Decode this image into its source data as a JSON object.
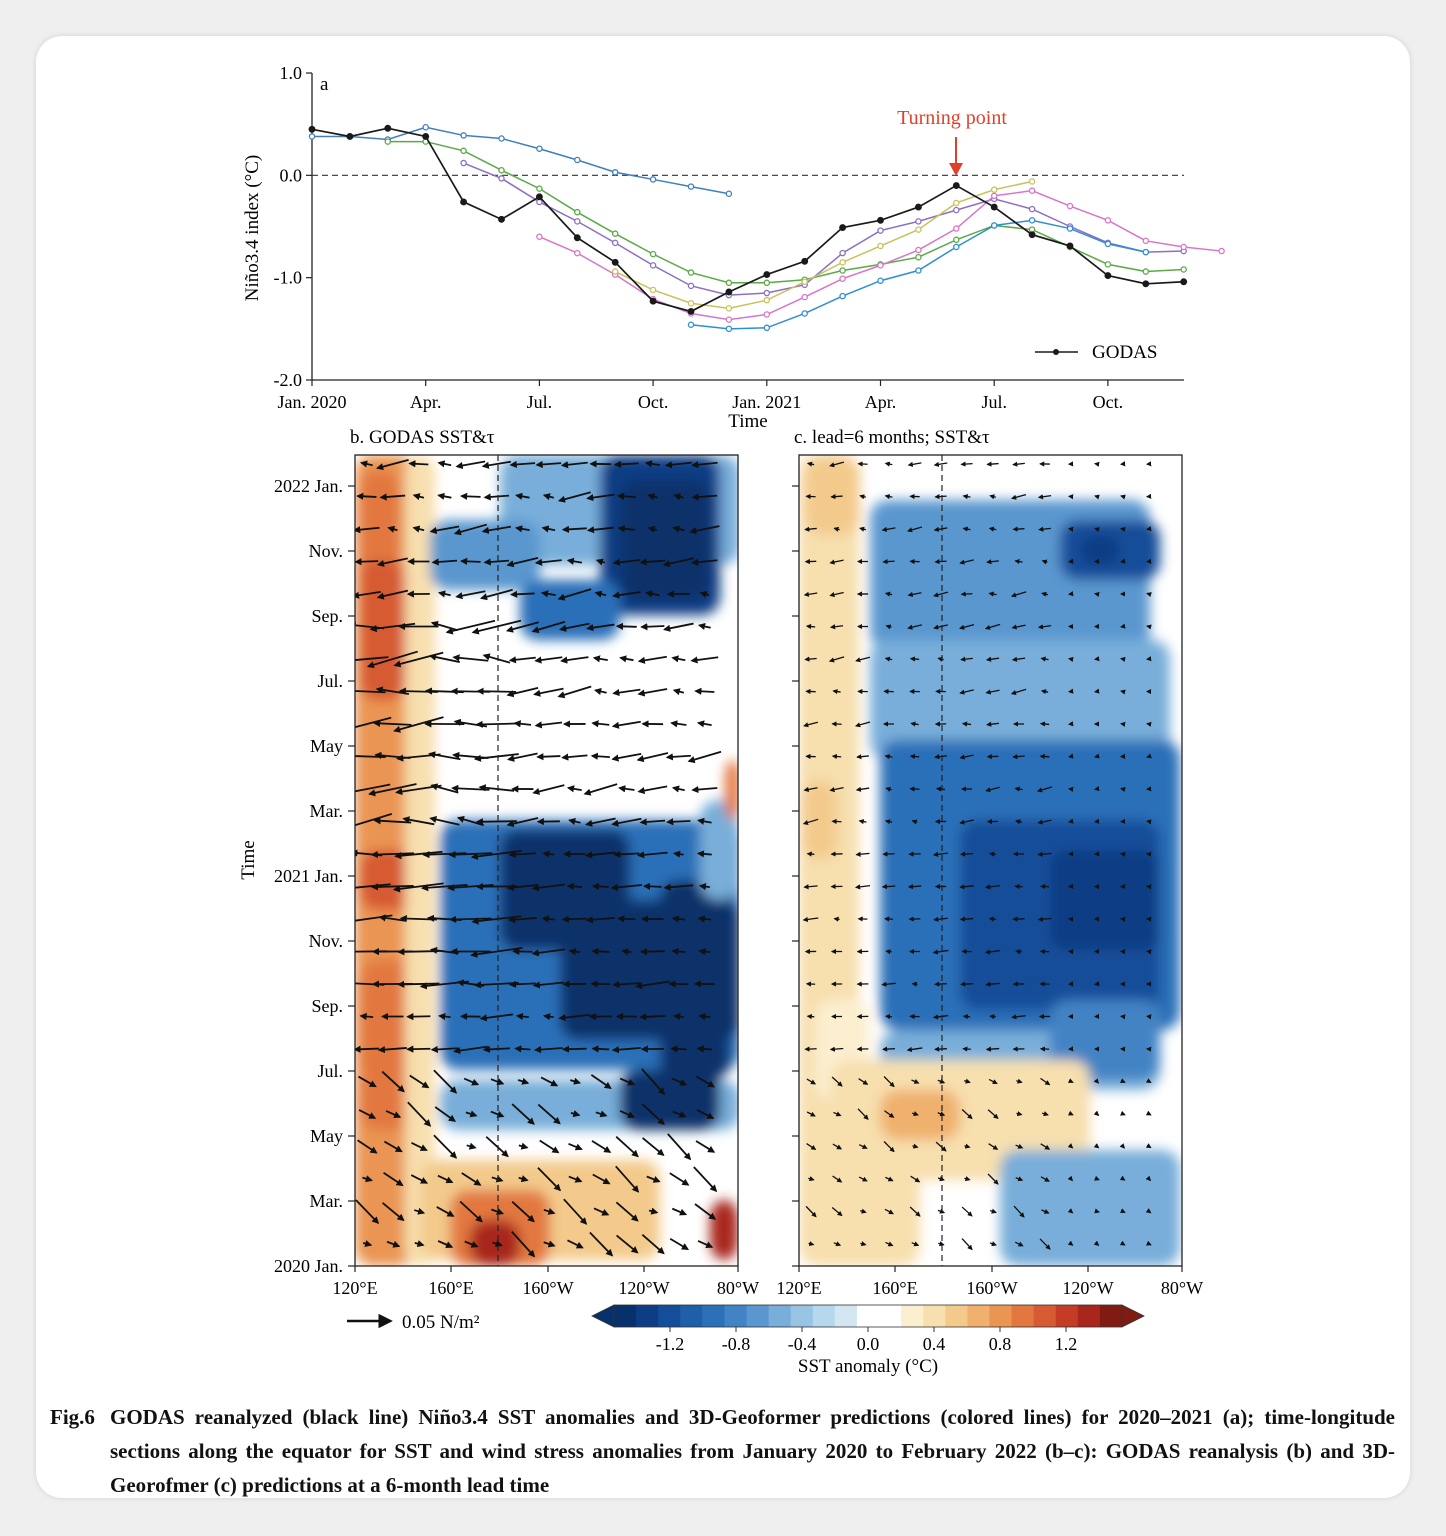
{
  "chart_data": [
    {
      "type": "line",
      "panel_label": "a",
      "ylabel": "Niño3.4 index (°C)",
      "xlabel": "Time",
      "ylim": [
        -2.0,
        1.0
      ],
      "yticks": [
        "1.0",
        "0.0",
        "-1.0",
        "-2.0"
      ],
      "xticks": [
        "Jan. 2020",
        "Apr.",
        "Jul.",
        "Oct.",
        "Jan. 2021",
        "Apr.",
        "Jul.",
        "Oct."
      ],
      "x_units": "months since Jan. 2020 (0 = Jan. 2020)",
      "annotation": "Turning point",
      "legend": {
        "label": "GODAS",
        "placement": "bottom-right"
      },
      "reference_line": 0.0,
      "series": [
        {
          "name": "GODAS",
          "color": "#1a1a1a",
          "x0": 0,
          "values": [
            0.45,
            0.38,
            0.46,
            0.38,
            -0.26,
            -0.43,
            -0.21,
            -0.61,
            -0.85,
            -1.23,
            -1.33,
            -1.14,
            -0.97,
            -0.84,
            -0.51,
            -0.44,
            -0.31,
            -0.1,
            -0.31,
            -0.58,
            -0.69,
            -0.98,
            -1.06,
            -1.04
          ]
        },
        {
          "color": "#3f7fbf",
          "x0": 0,
          "values": [
            0.38,
            0.38,
            0.35,
            0.47,
            0.39,
            0.36,
            0.26,
            0.15,
            0.03,
            -0.04,
            -0.11,
            -0.18
          ]
        },
        {
          "color": "#5aaa46",
          "x0": 2,
          "values": [
            0.33,
            0.33,
            0.24,
            0.05,
            -0.13,
            -0.36,
            -0.57,
            -0.77,
            -0.95,
            -1.05,
            -1.05,
            -1.02,
            -0.93,
            -0.87,
            -0.8,
            -0.63,
            -0.49,
            -0.53,
            -0.7,
            -0.87,
            -0.94,
            -0.92
          ]
        },
        {
          "color": "#8a6fc4",
          "x0": 4,
          "values": [
            0.12,
            -0.03,
            -0.26,
            -0.45,
            -0.66,
            -0.88,
            -1.08,
            -1.17,
            -1.15,
            -1.07,
            -0.76,
            -0.54,
            -0.45,
            -0.34,
            -0.23,
            -0.33,
            -0.5,
            -0.66,
            -0.75,
            -0.74
          ]
        },
        {
          "color": "#d975c9",
          "x0": 6,
          "values": [
            -0.6,
            -0.76,
            -0.97,
            -1.21,
            -1.35,
            -1.41,
            -1.36,
            -1.19,
            -1.01,
            -0.88,
            -0.73,
            -0.52,
            -0.2,
            -0.15,
            -0.3,
            -0.44,
            -0.64,
            -0.7,
            -0.74
          ]
        },
        {
          "color": "#c9c25a",
          "x0": 8,
          "values": [
            -0.94,
            -1.12,
            -1.25,
            -1.3,
            -1.22,
            -1.04,
            -0.85,
            -0.69,
            -0.53,
            -0.27,
            -0.14,
            -0.06
          ]
        },
        {
          "color": "#2f8fd0",
          "x0": 10,
          "values": [
            -1.46,
            -1.5,
            -1.49,
            -1.35,
            -1.18,
            -1.03,
            -0.93,
            -0.7,
            -0.49,
            -0.44,
            -0.52,
            -0.67,
            -0.75
          ]
        }
      ]
    },
    {
      "type": "heatmap",
      "title": "b. GODAS SST&τ",
      "ylabel": "Time",
      "xticks": [
        "120°E",
        "160°E",
        "160°W",
        "120°W",
        "80°W"
      ],
      "yticks": [
        "2020 Jan.",
        "Mar.",
        "May",
        "Jul.",
        "Sep.",
        "Nov.",
        "2021 Jan.",
        "Mar.",
        "May",
        "Jul.",
        "Sep.",
        "Nov.",
        "2022 Jan."
      ],
      "reference_longitude": "180°"
    },
    {
      "type": "heatmap",
      "title": "c. lead=6 months; SST&τ",
      "xticks": [
        "120°E",
        "160°E",
        "160°W",
        "120°W",
        "80°W"
      ],
      "reference_longitude": "180°"
    }
  ],
  "colorbar": {
    "label": "SST anomaly (°C)",
    "ticks": [
      "-1.2",
      "-0.8",
      "-0.4",
      "0.0",
      "0.4",
      "0.8",
      "1.2"
    ],
    "colors": [
      "#08306b",
      "#0d3e84",
      "#144d99",
      "#1f5ea9",
      "#2c70b8",
      "#4283c4",
      "#5a97cf",
      "#78aed9",
      "#97c4e3",
      "#b6d8ec",
      "#d2e7f1",
      "#ffffff",
      "#ffffff",
      "#fbefd0",
      "#f7dfae",
      "#f3ca8c",
      "#efb16d",
      "#ea9552",
      "#e2783f",
      "#d65a32",
      "#c43c26",
      "#a8261c",
      "#801b14"
    ]
  },
  "quiver_key": "0.05 N/m²",
  "caption": {
    "label": "Fig.6",
    "text": "GODAS reanalyzed (black line) Niño3.4 SST anomalies and 3D-Geoformer predictions (colored lines) for 2020–2021 (a); time-longitude sections along the equator for SST and wind stress anomalies from January 2020 to February 2022 (b–c): GODAS reanalysis (b) and 3D-Georofmer (c) predictions at a 6-month lead time"
  }
}
